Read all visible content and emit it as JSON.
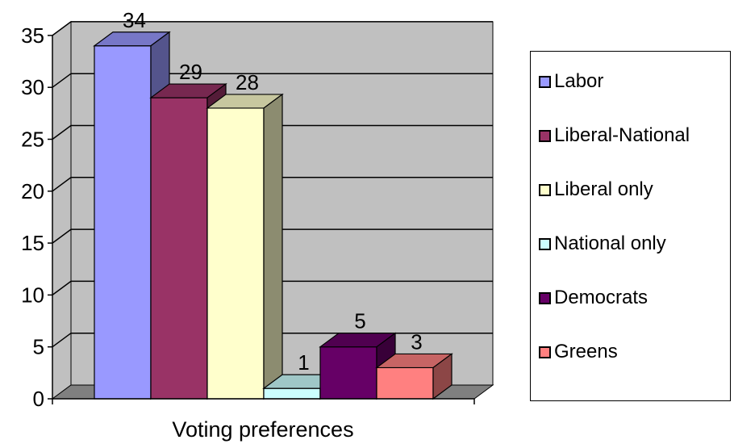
{
  "chart_data": {
    "type": "bar",
    "style": "3d-clustered-column",
    "xlabel": "Voting preferences",
    "ylabel": "",
    "ylim": [
      0,
      35
    ],
    "yticks": [
      0,
      5,
      10,
      15,
      20,
      25,
      30,
      35
    ],
    "grid": true,
    "legend_position": "right",
    "series": [
      {
        "name": "Labor",
        "value": 34,
        "color": "#9999ff"
      },
      {
        "name": "Liberal-National",
        "value": 29,
        "color": "#993366"
      },
      {
        "name": "Liberal only",
        "value": 28,
        "color": "#ffffcc"
      },
      {
        "name": "National only",
        "value": 1,
        "color": "#ccffff"
      },
      {
        "name": "Democrats",
        "value": 5,
        "color": "#660066"
      },
      {
        "name": "Greens",
        "value": 3,
        "color": "#ff8080"
      }
    ],
    "colors": {
      "wall": "#c0c0c0",
      "floor": "#808080",
      "gridline": "#000000"
    }
  }
}
